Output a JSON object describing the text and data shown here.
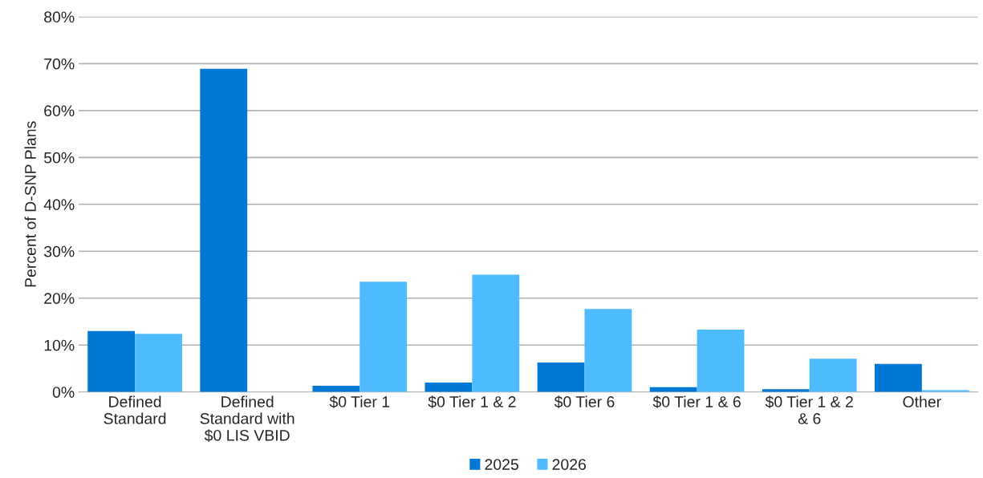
{
  "chart_data": {
    "type": "bar",
    "ylabel": "Percent of D-SNP Plans",
    "categories": [
      "Defined\nStandard",
      "Defined\nStandard with\n$0 LIS VBID",
      "$0 Tier 1",
      "$0 Tier 1 & 2",
      "$0 Tier 6",
      "$0 Tier 1 & 6",
      "$0 Tier 1 & 2\n& 6",
      "Other"
    ],
    "series": [
      {
        "name": "2025",
        "color": "#0078d4",
        "values": [
          13.0,
          68.9,
          1.3,
          2.0,
          6.3,
          1.0,
          0.6,
          6.0
        ]
      },
      {
        "name": "2026",
        "color": "#4fbbff",
        "values": [
          12.4,
          0,
          23.5,
          25.0,
          17.7,
          13.3,
          7.1,
          0.4
        ]
      }
    ],
    "ylim": [
      0,
      80
    ],
    "yticks": [
      {
        "value": 0,
        "label": "0%"
      },
      {
        "value": 10,
        "label": "10%"
      },
      {
        "value": 20,
        "label": "20%"
      },
      {
        "value": 30,
        "label": "30%"
      },
      {
        "value": 40,
        "label": "40%"
      },
      {
        "value": 50,
        "label": "50%"
      },
      {
        "value": 60,
        "label": "60%"
      },
      {
        "value": 70,
        "label": "70%"
      },
      {
        "value": 80,
        "label": "80%"
      }
    ],
    "grid": "y",
    "legend": "bottom"
  }
}
